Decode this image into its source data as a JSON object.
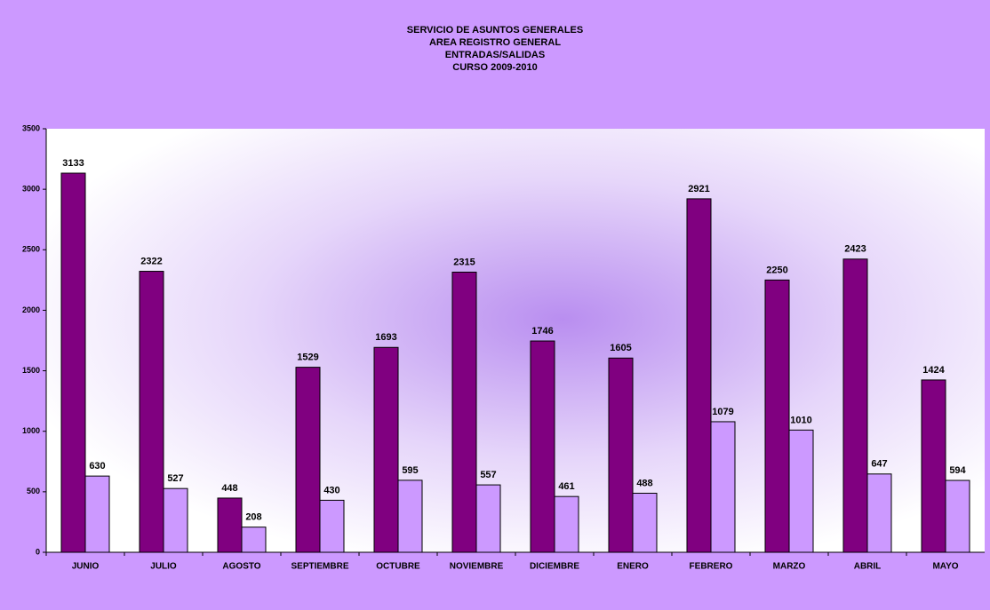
{
  "chart_data": {
    "type": "bar",
    "title": [
      "SERVICIO DE ASUNTOS GENERALES",
      "AREA REGISTRO GENERAL",
      "ENTRADAS/SALIDAS",
      "CURSO 2009-2010"
    ],
    "categories": [
      "JUNIO",
      "JULIO",
      "AGOSTO",
      "SEPTIEMBRE",
      "OCTUBRE",
      "NOVIEMBRE",
      "DICIEMBRE",
      "ENERO",
      "FEBRERO",
      "MARZO",
      "ABRIL",
      "MAYO"
    ],
    "series": [
      {
        "color": "#800080",
        "values": [
          3133,
          2322,
          448,
          1529,
          1693,
          2315,
          1746,
          1605,
          2921,
          2250,
          2423,
          1424
        ]
      },
      {
        "color": "#cc99ff",
        "values": [
          630,
          527,
          208,
          430,
          595,
          557,
          461,
          488,
          1079,
          1010,
          647,
          594
        ]
      }
    ],
    "ylim": [
      0,
      3500
    ],
    "yticks": [
      0,
      500,
      1000,
      1500,
      2000,
      2500,
      3000,
      3500
    ],
    "grid": false
  }
}
